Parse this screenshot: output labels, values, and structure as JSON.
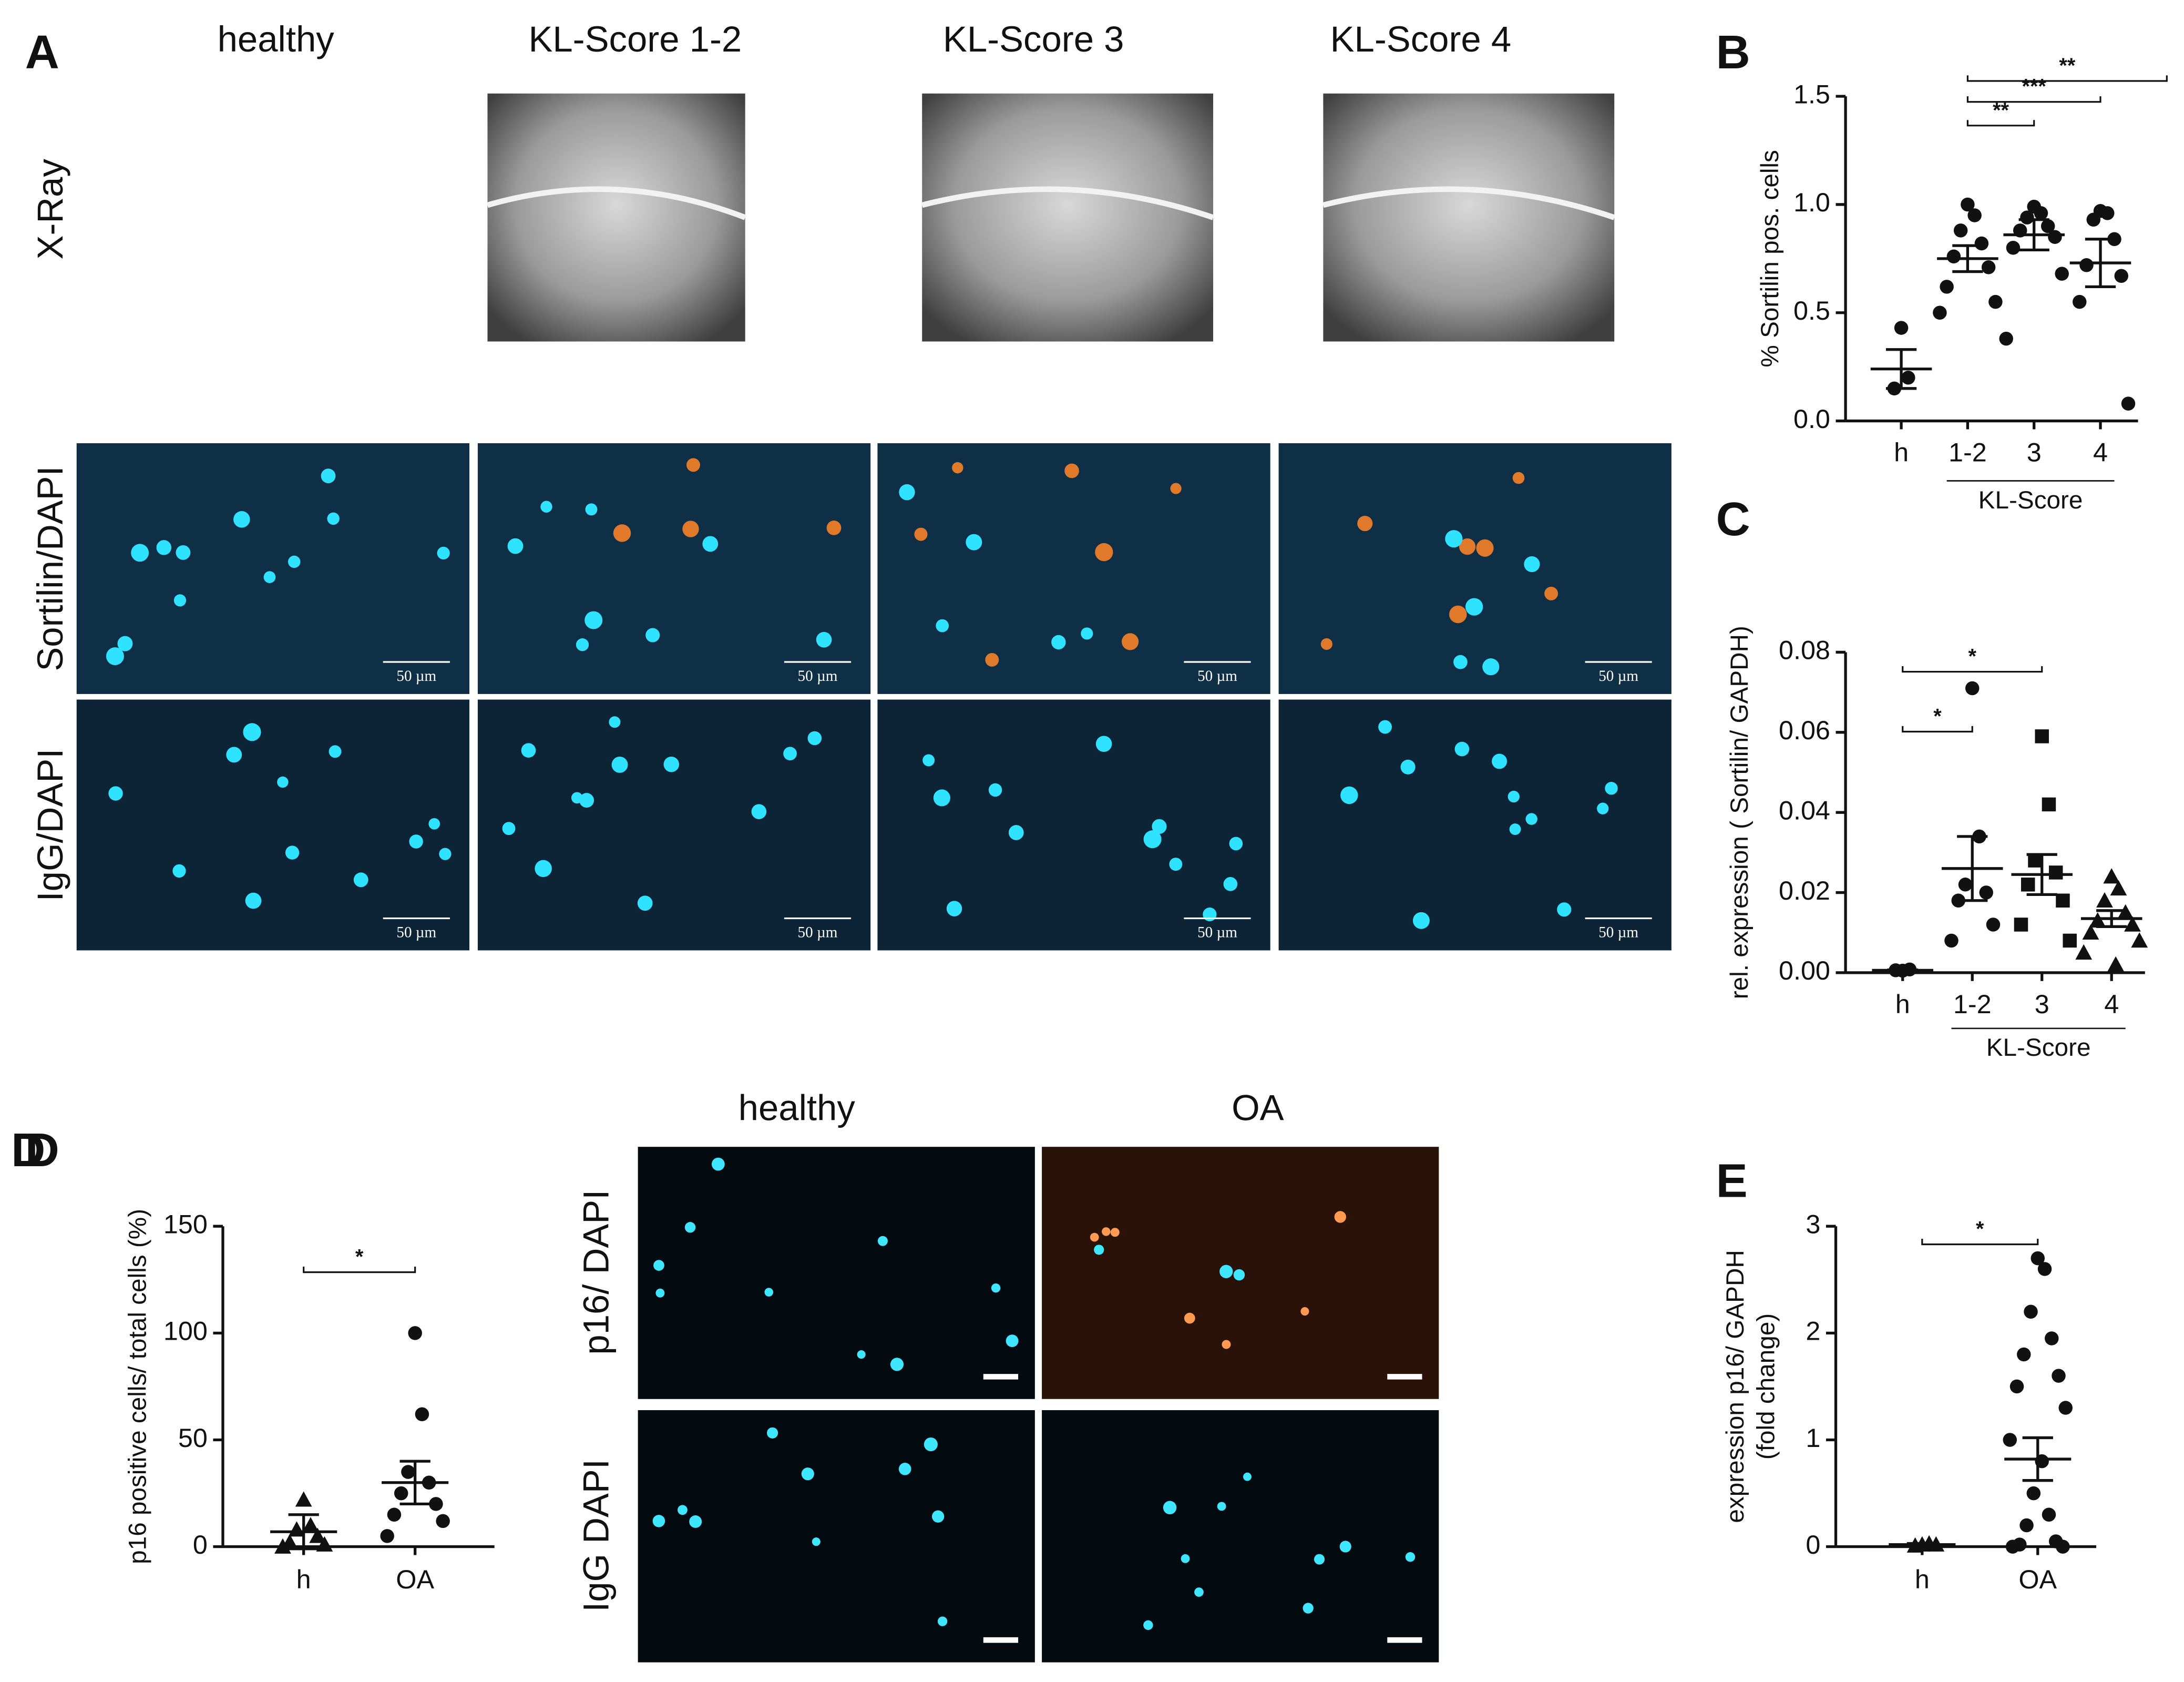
{
  "panel_a": {
    "label": "A",
    "columns": [
      "healthy",
      "KL-Score 1-2",
      "KL-Score 3",
      "KL-Score 4"
    ],
    "rows": [
      "X-Ray",
      "Sortilin/DAPI",
      "IgG/DAPI"
    ],
    "scale_bar": "50 µm"
  },
  "panel_d": {
    "label": "D",
    "columns": [
      "healthy",
      "OA"
    ],
    "rows": [
      "p16/ DAPI",
      "IgG DAPI"
    ]
  },
  "chart_data": [
    {
      "type": "dotplot",
      "panel": "B",
      "ylabel": [
        "% Sortilin pos. cells"
      ],
      "categories": [
        "h",
        "1-2",
        "3",
        "4"
      ],
      "group_label": "KL-Score",
      "group_span": [
        1,
        3
      ],
      "markers": [
        "circle",
        "circle",
        "circle",
        "circle"
      ],
      "values": [
        [
          0.43,
          0.2,
          0.15
        ],
        [
          1.0,
          0.95,
          0.88,
          0.82,
          0.76,
          0.71,
          0.62,
          0.55,
          0.5
        ],
        [
          0.99,
          0.96,
          0.94,
          0.9,
          0.88,
          0.85,
          0.8,
          0.68,
          0.38
        ],
        [
          0.97,
          0.96,
          0.93,
          0.84,
          0.72,
          0.67,
          0.55,
          0.08
        ]
      ],
      "mean": [
        0.24,
        0.75,
        0.86,
        0.73
      ],
      "sem": [
        0.09,
        0.06,
        0.07,
        0.11
      ],
      "ylim": [
        0,
        1.5
      ],
      "yticks": [
        {
          "value": 0,
          "label": "0.0"
        },
        {
          "value": 0.5,
          "label": "0.5"
        },
        {
          "value": 1,
          "label": "1.0"
        },
        {
          "value": 1.5,
          "label": "1.5"
        }
      ],
      "brackets": [
        {
          "between": [
            1,
            2
          ],
          "label": "**"
        },
        {
          "between": [
            1,
            3
          ],
          "label": "***"
        },
        {
          "between": [
            1,
            4
          ],
          "label": "**"
        }
      ]
    },
    {
      "type": "dotplot",
      "panel": "C",
      "ylabel": [
        "rel. expression ( Sortilin/ GAPDH)"
      ],
      "categories": [
        "h",
        "1-2",
        "3",
        "4"
      ],
      "group_label": "KL-Score",
      "group_span": [
        1,
        3
      ],
      "markers": [
        "circle",
        "circle",
        "square",
        "triangle"
      ],
      "values": [
        [
          0.0005,
          0.0008,
          0.0006
        ],
        [
          0.071,
          0.034,
          0.022,
          0.02,
          0.018,
          0.012,
          0.008
        ],
        [
          0.059,
          0.042,
          0.028,
          0.025,
          0.022,
          0.018,
          0.012,
          0.008
        ],
        [
          0.024,
          0.021,
          0.018,
          0.015,
          0.013,
          0.012,
          0.01,
          0.008,
          0.005,
          0.002
        ]
      ],
      "mean": [
        0.0006,
        0.026,
        0.0245,
        0.0135
      ],
      "sem": [
        0.0001,
        0.008,
        0.005,
        0.002
      ],
      "ylim": [
        0,
        0.08
      ],
      "yticks": [
        {
          "value": 0,
          "label": "0.00"
        },
        {
          "value": 0.02,
          "label": "0.02"
        },
        {
          "value": 0.04,
          "label": "0.04"
        },
        {
          "value": 0.06,
          "label": "0.06"
        },
        {
          "value": 0.08,
          "label": "0.08"
        }
      ],
      "brackets": [
        {
          "between": [
            0,
            1
          ],
          "label": "*"
        },
        {
          "between": [
            0,
            2
          ],
          "label": "*"
        }
      ]
    },
    {
      "type": "dotplot",
      "panel": "D",
      "ylabel": [
        "p16 positive cells/ total cells (%)"
      ],
      "categories": [
        "h",
        "OA"
      ],
      "markers": [
        "triangle",
        "circle"
      ],
      "values": [
        [
          22,
          10,
          8,
          5,
          2,
          1,
          0
        ],
        [
          100,
          62,
          35,
          30,
          25,
          20,
          15,
          12,
          5
        ]
      ],
      "mean": [
        7,
        30
      ],
      "sem": [
        8,
        10
      ],
      "ylim": [
        0,
        150
      ],
      "yticks": [
        0,
        50,
        100,
        150
      ],
      "brackets": [
        {
          "between": [
            0,
            1
          ],
          "label": "*"
        }
      ]
    },
    {
      "type": "dotplot",
      "panel": "E",
      "ylabel": [
        "expression p16/ GAPDH",
        "(fold change)"
      ],
      "categories": [
        "h",
        "OA"
      ],
      "markers": [
        "triangle",
        "circle"
      ],
      "values": [
        [
          0.02,
          0.03,
          0.01,
          0.02
        ],
        [
          2.7,
          2.6,
          2.2,
          1.95,
          1.8,
          1.6,
          1.5,
          1.3,
          1.0,
          0.8,
          0.5,
          0.3,
          0.2,
          0.05,
          0.02,
          0,
          0
        ]
      ],
      "mean": [
        0.02,
        0.82
      ],
      "sem": [
        0.01,
        0.2
      ],
      "ylim": [
        0,
        3
      ],
      "yticks": [
        0,
        1,
        2,
        3
      ],
      "brackets": [
        {
          "between": [
            0,
            1
          ],
          "label": "*"
        }
      ]
    }
  ]
}
